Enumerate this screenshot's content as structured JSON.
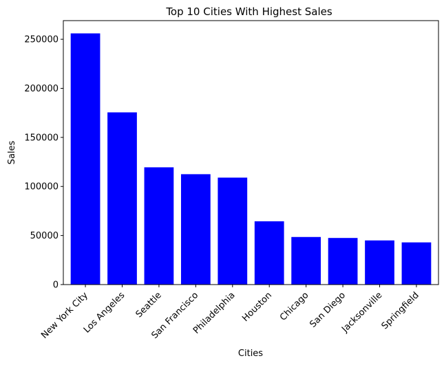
{
  "chart_data": {
    "type": "bar",
    "title": "Top 10 Cities With Highest Sales",
    "xlabel": "Cities",
    "ylabel": "Sales",
    "categories": [
      "New York City",
      "Los Angeles",
      "Seattle",
      "San Francisco",
      "Philadelphia",
      "Houston",
      "Chicago",
      "San Diego",
      "Jacksonville",
      "Springfield"
    ],
    "values": [
      256000,
      175500,
      119500,
      112500,
      109000,
      64500,
      48500,
      47500,
      45000,
      43000
    ],
    "yticks": [
      0,
      50000,
      100000,
      150000,
      200000,
      250000
    ],
    "ylim": [
      0,
      269000
    ],
    "bar_color": "#0000ff",
    "grid": false,
    "legend": false
  }
}
